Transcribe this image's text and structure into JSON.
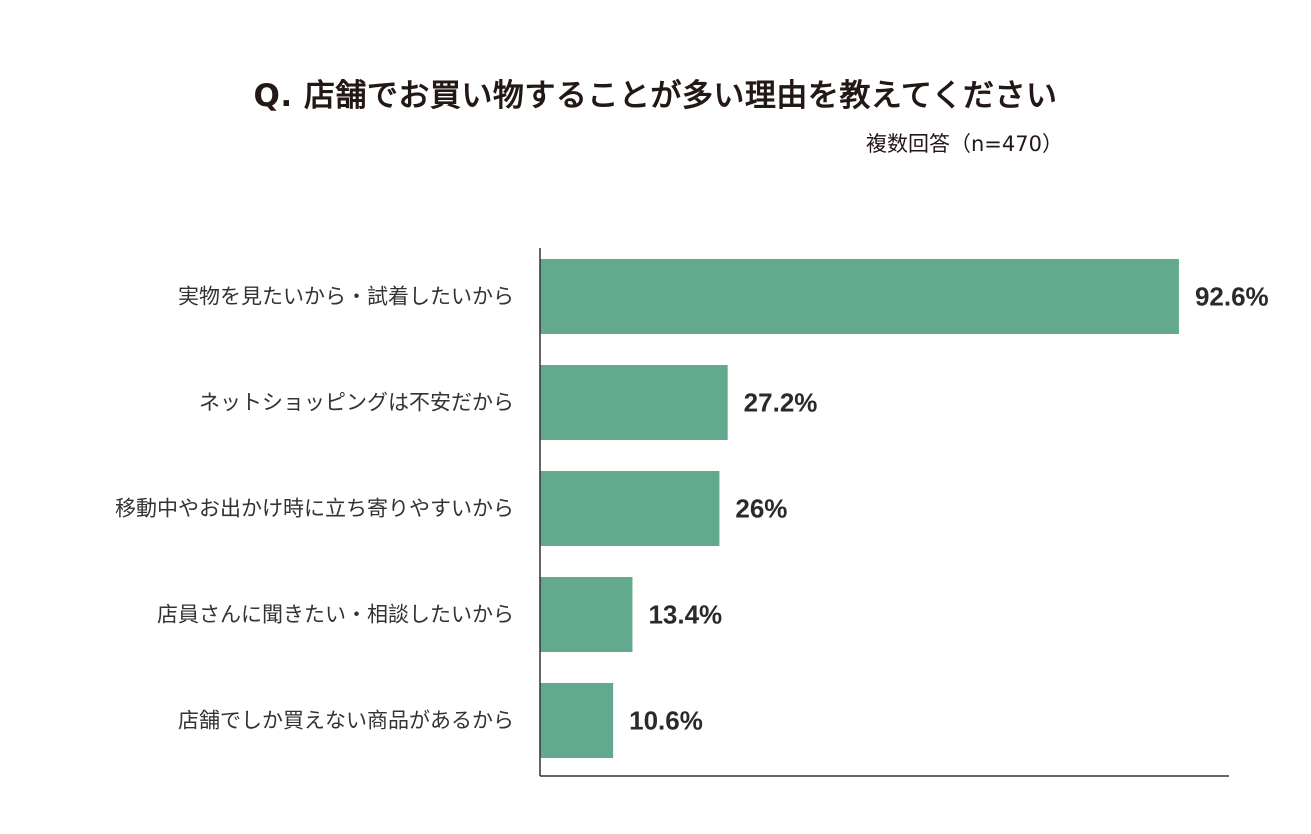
{
  "chart_data": {
    "type": "bar",
    "orientation": "horizontal",
    "title": "Q. 店舗でお買い物することが多い理由を教えてください",
    "subtitle": "複数回答（n=470）",
    "categories": [
      "実物を見たいから・試着したいから",
      "ネットショッピングは不安だから",
      "移動中やお出かけ時に立ち寄りやすいから",
      "店員さんに聞きたい・相談したいから",
      "店舗でしか買えない商品があるから"
    ],
    "values": [
      92.6,
      27.2,
      26,
      13.4,
      10.6
    ],
    "value_labels": [
      "92.6%",
      "27.2%",
      "26%",
      "13.4%",
      "10.6%"
    ],
    "xlim": [
      0,
      100
    ],
    "grid": false,
    "legend": "none",
    "bar_color": "#63a98e"
  }
}
